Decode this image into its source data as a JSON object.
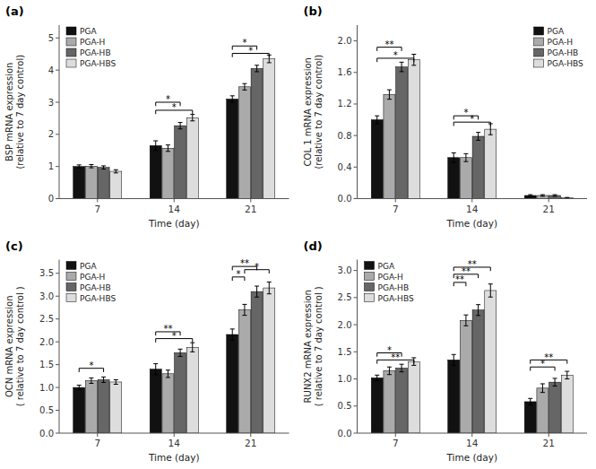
{
  "chart_data": [
    {
      "type": "bar",
      "title": "(a)",
      "xlabel": "Time (day)",
      "ylabel": "BSP mRNA expression\n(relative to 7 day control)",
      "categories": [
        "7",
        "14",
        "21"
      ],
      "series": [
        {
          "name": "PGA",
          "color": "#111111",
          "values": [
            1.0,
            1.65,
            3.1
          ],
          "errors": [
            0.05,
            0.15,
            0.1
          ]
        },
        {
          "name": "PGA-H",
          "color": "#aaaaaa",
          "values": [
            1.01,
            1.57,
            3.48
          ],
          "errors": [
            0.05,
            0.1,
            0.1
          ]
        },
        {
          "name": "PGA-HB",
          "color": "#666666",
          "values": [
            0.97,
            2.27,
            4.05
          ],
          "errors": [
            0.05,
            0.1,
            0.1
          ]
        },
        {
          "name": "PGA-HBS",
          "color": "#dddddd",
          "values": [
            0.85,
            2.52,
            4.35
          ],
          "errors": [
            0.05,
            0.1,
            0.12
          ]
        }
      ],
      "ylim": [
        0,
        5.4
      ],
      "yticks": [
        0,
        1,
        2,
        3,
        4,
        5
      ],
      "brackets": [
        {
          "category": "14",
          "from": "PGA",
          "to": "PGA-HB",
          "label": "*",
          "y": 3.0
        },
        {
          "category": "14",
          "from": "PGA",
          "to": "PGA-HBS",
          "label": "*",
          "y": 2.75
        },
        {
          "category": "21",
          "from": "PGA",
          "to": "PGA-HB",
          "label": "*",
          "y": 4.75
        },
        {
          "category": "21",
          "from": "PGA",
          "to": "PGA-HBS",
          "label": "*",
          "y": 4.52
        }
      ],
      "legend": "upper-left",
      "grid": false
    },
    {
      "type": "bar",
      "title": "(b)",
      "xlabel": "Time (day)",
      "ylabel": "COL 1 mRNA expression\n(relative to 7 day control)",
      "categories": [
        "7",
        "14",
        "21"
      ],
      "series": [
        {
          "name": "PGA",
          "color": "#111111",
          "values": [
            1.0,
            0.52,
            0.04
          ],
          "errors": [
            0.05,
            0.06,
            0.01
          ]
        },
        {
          "name": "PGA-H",
          "color": "#aaaaaa",
          "values": [
            1.32,
            0.52,
            0.04
          ],
          "errors": [
            0.06,
            0.05,
            0.01
          ]
        },
        {
          "name": "PGA-HB",
          "color": "#666666",
          "values": [
            1.67,
            0.79,
            0.04
          ],
          "errors": [
            0.06,
            0.05,
            0.01
          ]
        },
        {
          "name": "PGA-HBS",
          "color": "#dddddd",
          "values": [
            1.76,
            0.88,
            0.01
          ],
          "errors": [
            0.07,
            0.07,
            0.005
          ]
        }
      ],
      "ylim": [
        0,
        2.2
      ],
      "yticks": [
        {
          "value": 0.0,
          "label": "0.0"
        },
        0.4,
        0.8,
        1.2,
        1.6,
        {
          "value": 2.0,
          "label": "2.0"
        }
      ],
      "brackets": [
        {
          "category": "7",
          "from": "PGA",
          "to": "PGA-HB",
          "label": "**",
          "y": 1.92
        },
        {
          "category": "7",
          "from": "PGA",
          "to": "PGA-HBS",
          "label": "*",
          "y": 1.78
        },
        {
          "category": "14",
          "from": "PGA",
          "to": "PGA-HB",
          "label": "*",
          "y": 1.05
        },
        {
          "category": "14",
          "from": "PGA",
          "to": "PGA-HBS",
          "label": "*",
          "y": 0.97
        }
      ],
      "legend": "upper-right",
      "grid": false
    },
    {
      "type": "bar",
      "title": "(c)",
      "xlabel": "Time (day)",
      "ylabel": "OCN mRNA expression\n( relative to 7 day control )",
      "categories": [
        "7",
        "14",
        "21"
      ],
      "series": [
        {
          "name": "PGA",
          "color": "#111111",
          "values": [
            1.0,
            1.4,
            2.16
          ],
          "errors": [
            0.05,
            0.12,
            0.12
          ]
        },
        {
          "name": "PGA-H",
          "color": "#aaaaaa",
          "values": [
            1.15,
            1.3,
            2.7
          ],
          "errors": [
            0.06,
            0.08,
            0.12
          ]
        },
        {
          "name": "PGA-HB",
          "color": "#666666",
          "values": [
            1.17,
            1.76,
            3.1
          ],
          "errors": [
            0.06,
            0.08,
            0.12
          ]
        },
        {
          "name": "PGA-HBS",
          "color": "#dddddd",
          "values": [
            1.12,
            1.88,
            3.18
          ],
          "errors": [
            0.05,
            0.1,
            0.13
          ]
        }
      ],
      "ylim": [
        0,
        3.8
      ],
      "yticks": [
        {
          "value": 0.0,
          "label": "0.0"
        },
        0.5,
        {
          "value": 1.0,
          "label": "1.0"
        },
        1.5,
        {
          "value": 2.0,
          "label": "2.0"
        },
        2.5,
        {
          "value": 3.0,
          "label": "3.0"
        },
        3.5
      ],
      "brackets": [
        {
          "category": "7",
          "from": "PGA",
          "to": "PGA-HB",
          "label": "*",
          "y": 1.42
        },
        {
          "category": "14",
          "from": "PGA",
          "to": "PGA-HB",
          "label": "**",
          "y": 2.22
        },
        {
          "category": "14",
          "from": "PGA",
          "to": "PGA-HBS",
          "label": "*",
          "y": 2.07
        },
        {
          "category": "21",
          "from": "PGA",
          "to": "PGA-H",
          "label": "*",
          "y": 3.42
        },
        {
          "category": "21",
          "from": "PGA-H",
          "to": "PGA-HBS",
          "label": "*",
          "y": 3.58
        },
        {
          "category": "21",
          "from": "PGA",
          "to": "PGA-HB",
          "label": "**",
          "y": 3.65
        }
      ],
      "legend": "upper-left",
      "grid": false
    },
    {
      "type": "bar",
      "title": "(d)",
      "xlabel": "Time (day)",
      "ylabel": "RUNX2 mRNA expression\n( relative to 7 day control )",
      "categories": [
        "7",
        "14",
        "21"
      ],
      "series": [
        {
          "name": "PGA",
          "color": "#111111",
          "values": [
            1.02,
            1.35,
            0.58
          ],
          "errors": [
            0.05,
            0.1,
            0.06
          ]
        },
        {
          "name": "PGA-H",
          "color": "#aaaaaa",
          "values": [
            1.15,
            2.08,
            0.83
          ],
          "errors": [
            0.07,
            0.1,
            0.08
          ]
        },
        {
          "name": "PGA-HB",
          "color": "#666666",
          "values": [
            1.2,
            2.27,
            0.94
          ],
          "errors": [
            0.07,
            0.1,
            0.07
          ]
        },
        {
          "name": "PGA-HBS",
          "color": "#dddddd",
          "values": [
            1.32,
            2.63,
            1.07
          ],
          "errors": [
            0.07,
            0.12,
            0.07
          ]
        }
      ],
      "ylim": [
        0,
        3.2
      ],
      "yticks": [
        {
          "value": 0.0,
          "label": "0.0"
        },
        0.5,
        {
          "value": 1.0,
          "label": "1.0"
        },
        1.5,
        {
          "value": 2.0,
          "label": "2.0"
        },
        2.5,
        {
          "value": 3.0,
          "label": "3.0"
        }
      ],
      "brackets": [
        {
          "category": "7",
          "from": "PGA",
          "to": "PGA-HB",
          "label": "*",
          "y": 1.48
        },
        {
          "category": "7",
          "from": "PGA",
          "to": "PGA-HBS",
          "label": "**",
          "y": 1.35
        },
        {
          "category": "14",
          "from": "PGA",
          "to": "PGA-H",
          "label": "**",
          "y": 2.78
        },
        {
          "category": "14",
          "from": "PGA",
          "to": "PGA-HB",
          "label": "**",
          "y": 2.93
        },
        {
          "category": "14",
          "from": "PGA",
          "to": "PGA-HBS",
          "label": "**",
          "y": 3.06
        },
        {
          "category": "21",
          "from": "PGA",
          "to": "PGA-HB",
          "label": "*",
          "y": 1.22
        },
        {
          "category": "21",
          "from": "PGA",
          "to": "PGA-HBS",
          "label": "**",
          "y": 1.35
        }
      ],
      "legend": "upper-left",
      "grid": false
    }
  ]
}
